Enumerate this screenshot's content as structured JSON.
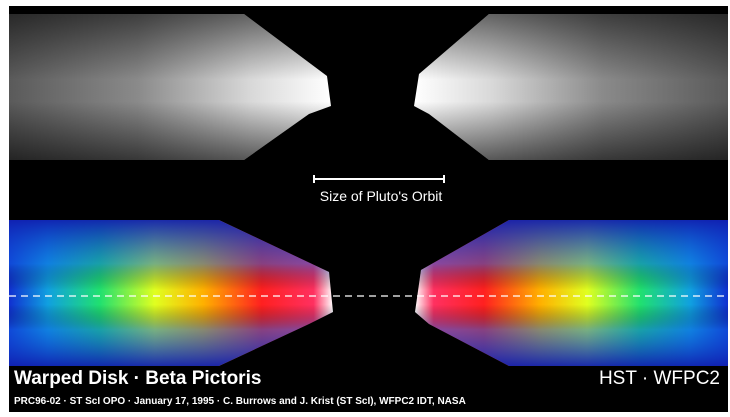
{
  "image": {
    "title": "Warped Disk · Beta Pictoris",
    "instrument": "HST · WFPC2",
    "credit": "PRC96-02 · ST ScI OPO · January 17, 1995 · C. Burrows and J. Krist (ST ScI), WFPC2 IDT,  NASA",
    "scale_label": "Size of Pluto's Orbit"
  }
}
